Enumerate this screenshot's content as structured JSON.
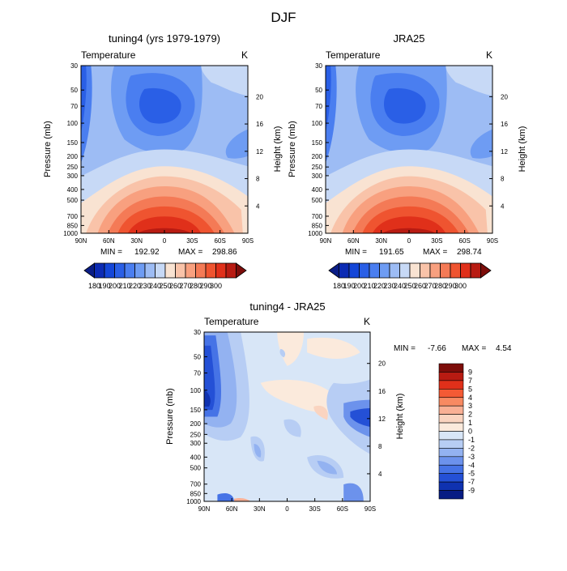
{
  "figure": {
    "title": "DJF"
  },
  "chart_data": [
    {
      "type": "heatmap",
      "title": "tuning4 (yrs 1979-1979)",
      "variable": "Temperature",
      "units": "K",
      "ylabel": "Pressure (mb)",
      "ylabel_right": "Height (km)",
      "x_ticks": [
        "90N",
        "60N",
        "30N",
        "0",
        "30S",
        "60S",
        "90S"
      ],
      "y_ticks": [
        "30",
        "50",
        "70",
        "100",
        "150",
        "200",
        "250",
        "300",
        "400",
        "500",
        "700",
        "850",
        "1000"
      ],
      "height_ticks": [
        "20",
        "16",
        "12",
        "8",
        "4"
      ],
      "min": "192.92",
      "max": "298.86",
      "min_label": "MIN =",
      "max_label": "MAX =",
      "colorbar_ticks": [
        "180",
        "190",
        "200",
        "210",
        "220",
        "230",
        "240",
        "250",
        "260",
        "270",
        "280",
        "290",
        "300"
      ]
    },
    {
      "type": "heatmap",
      "title": "JRA25",
      "variable": "Temperature",
      "units": "K",
      "ylabel": "Pressure (mb)",
      "ylabel_right": "Height (km)",
      "x_ticks": [
        "90N",
        "60N",
        "30N",
        "0",
        "30S",
        "60S",
        "90S"
      ],
      "y_ticks": [
        "30",
        "50",
        "70",
        "100",
        "150",
        "200",
        "250",
        "300",
        "400",
        "500",
        "700",
        "850",
        "1000"
      ],
      "height_ticks": [
        "20",
        "16",
        "12",
        "8",
        "4"
      ],
      "min": "191.65",
      "max": "298.74",
      "min_label": "MIN =",
      "max_label": "MAX =",
      "colorbar_ticks": [
        "180",
        "190",
        "200",
        "210",
        "220",
        "230",
        "240",
        "250",
        "260",
        "270",
        "280",
        "290",
        "300"
      ]
    },
    {
      "type": "heatmap",
      "title": "tuning4 - JRA25",
      "variable": "Temperature",
      "units": "K",
      "ylabel": "Pressure (mb)",
      "ylabel_right": "Height (km)",
      "x_ticks": [
        "90N",
        "60N",
        "30N",
        "0",
        "30S",
        "60S",
        "90S"
      ],
      "y_ticks": [
        "30",
        "50",
        "70",
        "100",
        "150",
        "200",
        "250",
        "300",
        "400",
        "500",
        "700",
        "850",
        "1000"
      ],
      "height_ticks": [
        "20",
        "16",
        "12",
        "8",
        "4"
      ],
      "min": "-7.66",
      "max": "4.54",
      "min_label": "MIN =",
      "max_label": "MAX =",
      "colorbar_ticks": [
        "9",
        "7",
        "5",
        "4",
        "3",
        "2",
        "1",
        "0",
        "-1",
        "-2",
        "-3",
        "-4",
        "-5",
        "-7",
        "-9"
      ]
    }
  ],
  "palettes": {
    "abs": [
      "#0a1d86",
      "#0c2bb4",
      "#1446d8",
      "#2a5fe6",
      "#4a7ef0",
      "#6e9cf3",
      "#9dbcf4",
      "#c7d9f6",
      "#f9e3d2",
      "#f9c3a9",
      "#f8a07f",
      "#f47a56",
      "#ef5430",
      "#e0301a",
      "#b81b12",
      "#7d0d0a"
    ],
    "diff": [
      "#7d0d0a",
      "#b81b12",
      "#e0301a",
      "#f45a34",
      "#f88a62",
      "#f9b095",
      "#fad4c0",
      "#fbeadc",
      "#d8e6f7",
      "#b7cdf4",
      "#93b2f1",
      "#6c92ec",
      "#4673e6",
      "#2450d6",
      "#0f32b0",
      "#071c84"
    ]
  }
}
